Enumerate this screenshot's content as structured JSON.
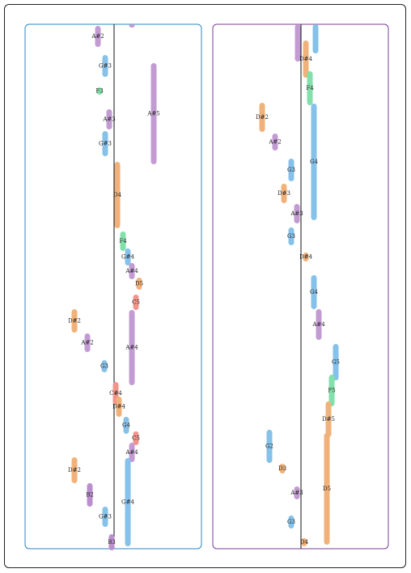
{
  "colors": {
    "A#": "#c39bd3",
    "G": "#85c1e9",
    "D": "#f0b27a",
    "F": "#82e0aa",
    "C": "#f1948a",
    "B": "#bb8fce",
    "panel_left_border": "#2e86c1",
    "panel_right_border": "#7d3c98"
  },
  "panels": [
    {
      "name": "left",
      "notes": [
        {
          "label": "A#2",
          "pitch": "A#",
          "offset": -20,
          "t0": 32,
          "t1": 58
        },
        {
          "label": "",
          "pitch": "A#",
          "offset": 22,
          "t0": 30,
          "t1": 32
        },
        {
          "label": "G#3",
          "pitch": "G",
          "offset": -11,
          "t0": 68,
          "t1": 95
        },
        {
          "label": "A#5",
          "pitch": "A#",
          "offset": 49,
          "t0": 78,
          "t1": 203
        },
        {
          "label": "F3",
          "pitch": "F",
          "offset": -18,
          "t0": 108,
          "t1": 117
        },
        {
          "label": "A#3",
          "pitch": "A#",
          "offset": -6,
          "t0": 135,
          "t1": 160
        },
        {
          "label": "G#3",
          "pitch": "G",
          "offset": -11,
          "t0": 162,
          "t1": 193
        },
        {
          "label": "D4",
          "pitch": "D",
          "offset": 4,
          "t0": 200,
          "t1": 282
        },
        {
          "label": "F4",
          "pitch": "F",
          "offset": 11,
          "t0": 286,
          "t1": 310
        },
        {
          "label": "G#4",
          "pitch": "G",
          "offset": 17,
          "t0": 307,
          "t1": 328
        },
        {
          "label": "A#4",
          "pitch": "A#",
          "offset": 22,
          "t0": 325,
          "t1": 345
        },
        {
          "label": "D5",
          "pitch": "D",
          "offset": 31,
          "t0": 343,
          "t1": 358
        },
        {
          "label": "C5",
          "pitch": "C",
          "offset": 27,
          "t0": 364,
          "t1": 383
        },
        {
          "label": "D#2",
          "pitch": "D",
          "offset": -49,
          "t0": 382,
          "t1": 411
        },
        {
          "label": "A#4",
          "pitch": "A#",
          "offset": 22,
          "t0": 383,
          "t1": 476
        },
        {
          "label": "A#2",
          "pitch": "A#",
          "offset": -33,
          "t0": 412,
          "t1": 435
        },
        {
          "label": "G3",
          "pitch": "G",
          "offset": -12,
          "t0": 445,
          "t1": 460
        },
        {
          "label": "C#4",
          "pitch": "C",
          "offset": 2,
          "t0": 472,
          "t1": 500
        },
        {
          "label": "D#4",
          "pitch": "D",
          "offset": 6,
          "t0": 490,
          "t1": 515
        },
        {
          "label": "G4",
          "pitch": "G",
          "offset": 15,
          "t0": 515,
          "t1": 536
        },
        {
          "label": "C5",
          "pitch": "C",
          "offset": 27,
          "t0": 533,
          "t1": 550
        },
        {
          "label": "A#4",
          "pitch": "A#",
          "offset": 22,
          "t0": 547,
          "t1": 571
        },
        {
          "label": "D#2",
          "pitch": "D",
          "offset": -49,
          "t0": 565,
          "t1": 597
        },
        {
          "label": "G#4",
          "pitch": "G",
          "offset": 17,
          "t0": 566,
          "t1": 675
        },
        {
          "label": "B2",
          "pitch": "B",
          "offset": -30,
          "t0": 597,
          "t1": 626
        },
        {
          "label": "G#3",
          "pitch": "G",
          "offset": -11,
          "t0": 626,
          "t1": 651
        },
        {
          "label": "B3",
          "pitch": "B",
          "offset": -3,
          "t0": 660,
          "t1": 680
        }
      ]
    },
    {
      "name": "right",
      "notes": [
        {
          "label": "",
          "pitch": "A#",
          "offset": -4,
          "t0": 30,
          "t1": 76
        },
        {
          "label": "",
          "pitch": "G",
          "offset": 18,
          "t0": 30,
          "t1": 66
        },
        {
          "label": "D#4",
          "pitch": "D",
          "offset": 6,
          "t0": 50,
          "t1": 96
        },
        {
          "label": "F4",
          "pitch": "F",
          "offset": 11,
          "t0": 88,
          "t1": 130
        },
        {
          "label": "D#2",
          "pitch": "D",
          "offset": -48,
          "t0": 127,
          "t1": 163
        },
        {
          "label": "G4",
          "pitch": "G",
          "offset": 16,
          "t0": 128,
          "t1": 272
        },
        {
          "label": "A#2",
          "pitch": "A#",
          "offset": -32,
          "t0": 165,
          "t1": 186
        },
        {
          "label": "G3",
          "pitch": "G",
          "offset": -12,
          "t0": 196,
          "t1": 224
        },
        {
          "label": "D#3",
          "pitch": "D",
          "offset": -21,
          "t0": 227,
          "t1": 251
        },
        {
          "label": "A#3",
          "pitch": "A#",
          "offset": -5,
          "t0": 252,
          "t1": 276
        },
        {
          "label": "G3",
          "pitch": "G",
          "offset": -12,
          "t0": 281,
          "t1": 303
        },
        {
          "label": "D#4",
          "pitch": "D",
          "offset": 6,
          "t0": 312,
          "t1": 323
        },
        {
          "label": "G4",
          "pitch": "G",
          "offset": 16,
          "t0": 340,
          "t1": 382
        },
        {
          "label": "A#4",
          "pitch": "A#",
          "offset": 22,
          "t0": 382,
          "t1": 420
        },
        {
          "label": "G5",
          "pitch": "G",
          "offset": 43,
          "t0": 425,
          "t1": 470
        },
        {
          "label": "F5",
          "pitch": "F",
          "offset": 38,
          "t0": 463,
          "t1": 502
        },
        {
          "label": "D#5",
          "pitch": "D",
          "offset": 34,
          "t0": 496,
          "t1": 540
        },
        {
          "label": "D5",
          "pitch": "D",
          "offset": 32,
          "t0": 535,
          "t1": 673
        },
        {
          "label": "G2",
          "pitch": "G",
          "offset": -39,
          "t0": 531,
          "t1": 572
        },
        {
          "label": "D3",
          "pitch": "D",
          "offset": -23,
          "t0": 573,
          "t1": 585
        },
        {
          "label": "A#3",
          "pitch": "A#",
          "offset": -5,
          "t0": 601,
          "t1": 617
        },
        {
          "label": "G3",
          "pitch": "G",
          "offset": -12,
          "t0": 637,
          "t1": 653
        },
        {
          "label": "D4",
          "pitch": "D",
          "offset": 4,
          "t0": 665,
          "t1": 675
        }
      ]
    }
  ]
}
